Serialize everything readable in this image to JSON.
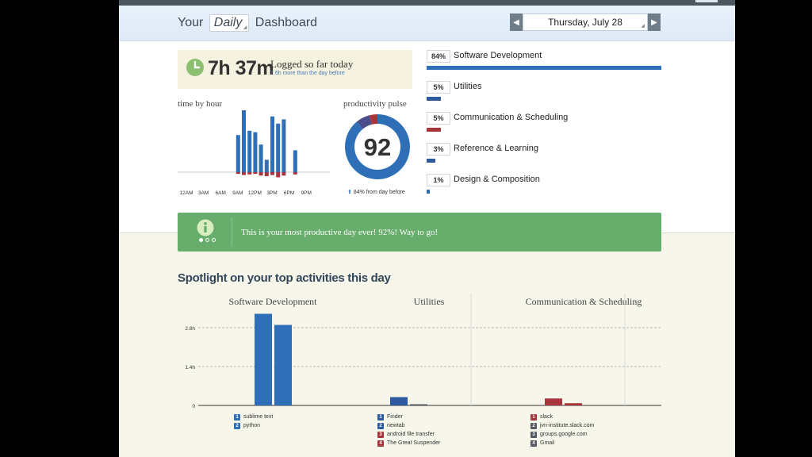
{
  "header": {
    "title_prefix": "Your",
    "period": "Daily",
    "title_suffix": "Dashboard",
    "date": "Thursday, July 28",
    "prev_icon": "triangle-left-icon",
    "next_icon": "triangle-right-icon"
  },
  "summary": {
    "logged_time": "7h 37m",
    "logged_label": "Logged so far today",
    "logged_sub": "7.6h more than the day before",
    "icon": "clock-icon"
  },
  "time_by_hour": {
    "label": "time by hour",
    "tick_labels": [
      "12AM",
      "3AM",
      "6AM",
      "9AM",
      "12PM",
      "3PM",
      "6PM",
      "9PM"
    ]
  },
  "pulse": {
    "label": "productivity pulse",
    "score": "92",
    "sub": "84% from day before",
    "up_icon": "arrow-up-icon"
  },
  "categories": [
    {
      "pct": "84%",
      "name": "Software Development",
      "value": 84,
      "color": "#2e6fb8"
    },
    {
      "pct": "5%",
      "name": "Utilities",
      "value": 5,
      "color": "#2e5a9e"
    },
    {
      "pct": "5%",
      "name": "Communication & Scheduling",
      "value": 5,
      "color": "#a8343c"
    },
    {
      "pct": "3%",
      "name": "Reference & Learning",
      "value": 3,
      "color": "#2e5a9e"
    },
    {
      "pct": "1%",
      "name": "Design & Composition",
      "value": 1,
      "color": "#2e6fb8"
    }
  ],
  "banner": {
    "message": "This is your most productive day ever! 92%! Way to go!",
    "icon": "info-icon",
    "color": "#67ad6b"
  },
  "spotlight": {
    "title": "Spotlight on your top activities this day",
    "panels": [
      {
        "title": "Software Development",
        "legend": [
          "sublime text",
          "python"
        ],
        "legend_colors": [
          "#2e6fb8",
          "#2e6fb8"
        ]
      },
      {
        "title": "Utilities",
        "legend": [
          "Finder",
          "newtab",
          "android file transfer",
          "The Great Suspender"
        ],
        "legend_colors": [
          "#2e5a9e",
          "#2e5a9e",
          "#a8343c",
          "#a8343c"
        ]
      },
      {
        "title": "Communication & Scheduling",
        "legend": [
          "slack",
          "jvn-institute.slack.com",
          "groups.google.com",
          "Gmail"
        ],
        "legend_colors": [
          "#a8343c",
          "#555a66",
          "#555a66",
          "#555a66"
        ]
      }
    ]
  },
  "chart_data": [
    {
      "type": "bar",
      "title": "time by hour",
      "categories": [
        "12AM",
        "1AM",
        "2AM",
        "3AM",
        "4AM",
        "5AM",
        "6AM",
        "7AM",
        "8AM",
        "9AM",
        "10AM",
        "11AM",
        "12PM",
        "1PM",
        "2PM",
        "3PM",
        "4PM",
        "5PM",
        "6PM",
        "7PM",
        "8PM",
        "9PM",
        "10PM",
        "11PM"
      ],
      "series": [
        {
          "name": "productive",
          "values": [
            0,
            0,
            0,
            0,
            0,
            0,
            0,
            0,
            0,
            0.78,
            1.3,
            0.87,
            0.84,
            0.58,
            0.26,
            1.17,
            1.02,
            1.11,
            0,
            0.46,
            0,
            0,
            0,
            0
          ]
        },
        {
          "name": "distracting",
          "values": [
            0,
            0,
            0,
            0,
            0,
            0,
            0,
            0,
            0,
            0.06,
            0.1,
            0.08,
            0.06,
            0.12,
            0.14,
            0.1,
            0.18,
            0.12,
            0,
            0.08,
            0,
            0,
            0,
            0
          ]
        }
      ],
      "xlabel": "",
      "ylabel": ""
    },
    {
      "type": "pie",
      "title": "productivity pulse",
      "score": 92,
      "values": [
        89,
        7,
        4
      ],
      "colors": [
        "#2e6fb8",
        "#4a4f8a",
        "#a8343c"
      ]
    },
    {
      "type": "bar",
      "title": "Spotlight on your top activities this day",
      "ylabel": "",
      "tick_labels": [
        "0",
        "1.4h",
        "2.8h"
      ],
      "ylim": [
        0,
        3.5
      ],
      "groups": [
        {
          "name": "Software Development",
          "values": [
            3.3,
            2.9
          ],
          "colors": [
            "#2e6fb8",
            "#2e6fb8"
          ]
        },
        {
          "name": "Utilities",
          "values": [
            0.3,
            0.02
          ],
          "colors": [
            "#2e5a9e",
            "#555a66"
          ]
        },
        {
          "name": "Communication & Scheduling",
          "values": [
            0.25,
            0.08
          ],
          "colors": [
            "#a8343c",
            "#a8343c"
          ]
        }
      ]
    }
  ]
}
